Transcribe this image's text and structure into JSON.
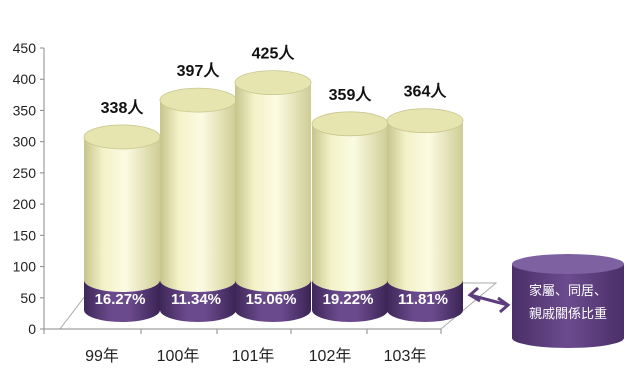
{
  "chart_data": {
    "type": "bar",
    "categories": [
      "99年",
      "100年",
      "101年",
      "102年",
      "103年"
    ],
    "series": [
      {
        "values": [
          338,
          397,
          425,
          359,
          364
        ]
      }
    ],
    "value_labels": [
      "338人",
      "397人",
      "425人",
      "359人",
      "364人"
    ],
    "share_percent": [
      16.27,
      11.34,
      15.06,
      19.22,
      11.81
    ],
    "share_labels": [
      "16.27%",
      "11.34%",
      "15.06%",
      "19.22%",
      "11.81%"
    ],
    "ylim": [
      0,
      450
    ],
    "yticks": [
      "0",
      "50",
      "100",
      "150",
      "200",
      "250",
      "300",
      "350",
      "400",
      "450"
    ],
    "legend": {
      "line1": "家屬、同居、",
      "line2": "親戚關係比重",
      "placement": "right"
    },
    "colors": {
      "bar_top": "#e6e5b0",
      "bar_body": "#f5f5cf",
      "bar_base": "#5c3d7d",
      "base_label": "#ffffff",
      "legend_fill": "#5c3d7d"
    }
  }
}
